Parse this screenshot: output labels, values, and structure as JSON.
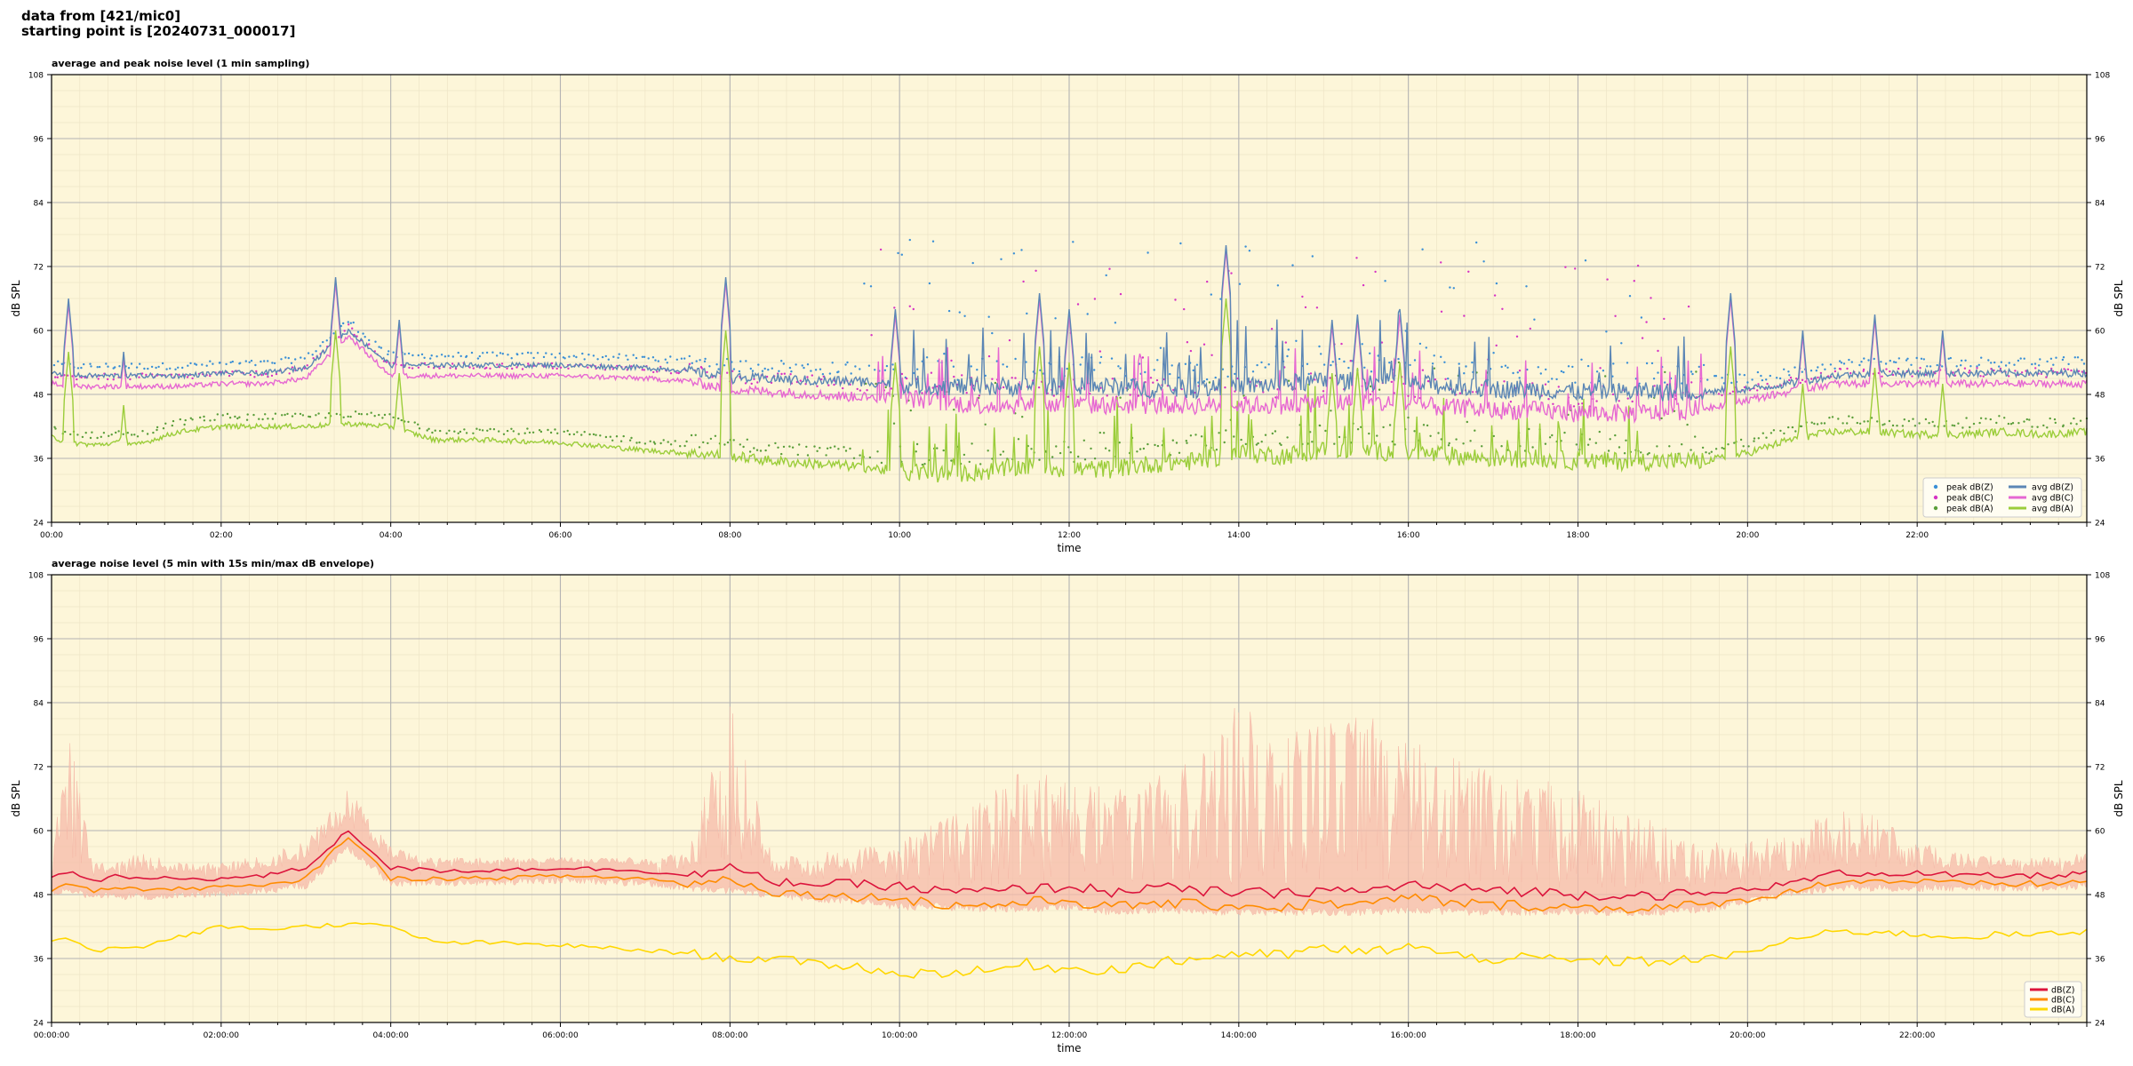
{
  "header": {
    "line1": "data from [421/mic0]",
    "line2": "starting point is [20240731_000017]"
  },
  "colors": {
    "plot_bg": "#fdf6d9",
    "dBZ": "#5b86b5",
    "dBC": "#e667d2",
    "dBA": "#9bcd3a",
    "peakZ": "#3a8fd6",
    "peakC": "#d633c4",
    "peakA": "#5a9e3a",
    "env": "#f5b9a8",
    "avgZ5": "#dc143c",
    "avgC5": "#ff8c00",
    "avgA5": "#ffd700"
  },
  "chart_data": [
    {
      "type": "line",
      "title": "average and peak noise level (1 min sampling)",
      "xlabel": "time",
      "ylabel": "dB SPL",
      "xlim_hours": [
        0,
        24
      ],
      "ylim": [
        24,
        108
      ],
      "yticks": [
        24,
        36,
        48,
        60,
        72,
        84,
        96,
        108
      ],
      "xtick_labels": [
        "00:00",
        "02:00",
        "04:00",
        "06:00",
        "08:00",
        "10:00",
        "12:00",
        "14:00",
        "16:00",
        "18:00",
        "20:00",
        "22:00"
      ],
      "grid": true,
      "legend_position": "lower-right",
      "legend": {
        "peak": [
          "peak dB(Z)",
          "peak dB(C)",
          "peak dB(A)"
        ],
        "avg": [
          "avg dB(Z)",
          "avg dB(C)",
          "avg dB(A)"
        ]
      },
      "hours": [
        0,
        0.2,
        0.5,
        0.8,
        1,
        1.5,
        2,
        2.5,
        3,
        3.5,
        4,
        4.5,
        5,
        6,
        7,
        7.5,
        8,
        8.5,
        9,
        9.5,
        10,
        10.5,
        11,
        11.5,
        12,
        12.5,
        13,
        13.5,
        14,
        14.5,
        15,
        15.5,
        16,
        16.5,
        17,
        17.5,
        18,
        18.5,
        19,
        19.5,
        20,
        20.5,
        21,
        21.5,
        22,
        22.5,
        23,
        23.5,
        24
      ],
      "series": [
        {
          "name": "avg dB(Z)",
          "values": [
            52,
            51.5,
            51.5,
            51.5,
            51.5,
            51.5,
            52,
            52,
            53,
            60,
            53.5,
            53.5,
            53.5,
            53.5,
            53,
            52.5,
            51,
            51,
            50.5,
            50.5,
            50,
            49.5,
            49.5,
            49.5,
            49.5,
            49.5,
            49,
            49,
            49.5,
            50,
            50.5,
            50.5,
            50,
            49.5,
            49,
            49,
            48.5,
            48.5,
            48.5,
            48.5,
            49,
            50,
            51.5,
            52,
            52,
            52,
            52,
            52,
            52
          ]
        },
        {
          "name": "avg dB(C)",
          "values": [
            50,
            49.5,
            49.5,
            49.5,
            49.5,
            49.5,
            50,
            50,
            51,
            59,
            51.5,
            51.5,
            51.5,
            51.5,
            51,
            50.5,
            49,
            48.5,
            48,
            47.5,
            47.5,
            46.5,
            46,
            46,
            46,
            46,
            46,
            46,
            46,
            46,
            46.5,
            46.5,
            46,
            45.5,
            45,
            45,
            44.5,
            44.5,
            44.5,
            45.5,
            47,
            48.5,
            50,
            50,
            50,
            50,
            50,
            50,
            50
          ]
        },
        {
          "name": "avg dB(A)",
          "values": [
            40,
            39,
            38.5,
            39,
            38.5,
            41,
            42,
            42,
            42,
            42.5,
            42,
            39.5,
            39.5,
            39,
            37.5,
            37,
            36.5,
            35.5,
            35,
            34.5,
            33.5,
            33,
            33.5,
            34.5,
            34,
            34,
            35,
            35.5,
            37,
            36.5,
            37.5,
            37.5,
            37,
            36.5,
            36,
            36,
            35.5,
            35.5,
            35.5,
            35.5,
            37,
            39.5,
            41,
            41,
            40.5,
            40.5,
            41,
            40.5,
            41
          ]
        }
      ],
      "peak_events_hours": [
        0.2,
        0.85,
        3.35,
        4.1,
        7.95,
        9.95,
        11.65,
        12.0,
        13.85,
        15.1,
        15.4,
        15.9,
        19.8,
        20.65,
        21.5,
        22.3
      ],
      "peak_event_heights": [
        66,
        56,
        70,
        62,
        70,
        64,
        67,
        64,
        76,
        62,
        63,
        64,
        67,
        60,
        63,
        60
      ]
    },
    {
      "type": "line",
      "title": "average noise level (5 min with 15s min/max dB envelope)",
      "xlabel": "time",
      "ylabel": "dB SPL",
      "xlim_hours": [
        0,
        24
      ],
      "ylim": [
        24,
        108
      ],
      "yticks": [
        24,
        36,
        48,
        60,
        72,
        84,
        96,
        108
      ],
      "xtick_labels": [
        "00:00:00",
        "02:00:00",
        "04:00:00",
        "06:00:00",
        "08:00:00",
        "10:00:00",
        "12:00:00",
        "14:00:00",
        "16:00:00",
        "18:00:00",
        "20:00:00",
        "22:00:00"
      ],
      "grid": true,
      "legend_position": "lower-right",
      "legend": [
        "dB(Z)",
        "dB(C)",
        "dB(A)"
      ],
      "hours": [
        0,
        0.2,
        0.5,
        0.8,
        1,
        1.5,
        2,
        2.5,
        3,
        3.5,
        4,
        4.5,
        5,
        6,
        7,
        7.5,
        8,
        8.5,
        9,
        9.5,
        10,
        10.5,
        11,
        11.5,
        12,
        12.5,
        13,
        13.5,
        14,
        14.5,
        15,
        15.5,
        16,
        16.5,
        17,
        17.5,
        18,
        18.5,
        19,
        19.5,
        20,
        20.5,
        21,
        21.5,
        22,
        22.5,
        23,
        23.5,
        24
      ],
      "series": [
        {
          "name": "dB(Z)",
          "values": [
            51,
            52.5,
            50.5,
            51.5,
            51,
            51,
            51,
            51.5,
            53,
            60,
            53,
            52.5,
            52.5,
            53,
            52.5,
            51.5,
            53,
            50.5,
            50,
            50,
            49.5,
            48.5,
            48.5,
            49,
            49.5,
            48.5,
            49.5,
            48.5,
            48.5,
            48,
            49,
            48.5,
            50,
            49,
            49,
            48.5,
            48,
            48,
            48,
            48,
            49,
            50,
            52,
            52,
            52,
            51.5,
            51.5,
            51.5,
            52
          ]
        },
        {
          "name": "dB(C)",
          "values": [
            49,
            50.5,
            48.5,
            49.5,
            49,
            49,
            49.5,
            49.5,
            51,
            59,
            51,
            51,
            51,
            51.5,
            51,
            50,
            51,
            48.5,
            48,
            47.5,
            47.5,
            46,
            46,
            46.5,
            47,
            45.5,
            46.5,
            46,
            46,
            45.5,
            46.5,
            46,
            47.5,
            46.5,
            46,
            46,
            45.5,
            45.5,
            45.5,
            46,
            47,
            48.5,
            50.5,
            50.5,
            50.5,
            50,
            50,
            50,
            50.5
          ]
        },
        {
          "name": "dB(A)",
          "values": [
            39.5,
            40,
            37.5,
            38,
            38,
            40,
            42,
            41.5,
            42,
            42.5,
            42,
            39,
            39,
            38.5,
            37.5,
            37,
            36,
            36,
            35,
            34.5,
            33,
            33.5,
            33.5,
            35,
            34,
            34,
            35,
            36,
            37,
            36.5,
            38,
            37,
            38.5,
            36.5,
            36,
            36,
            35.5,
            35.5,
            35.5,
            36,
            37,
            39.5,
            41,
            41,
            40.5,
            40,
            40.5,
            40.5,
            41
          ]
        }
      ],
      "envelope_max": [
        54,
        80,
        54,
        54,
        56,
        54,
        54,
        56,
        58,
        68,
        57,
        55,
        55,
        55,
        55,
        56,
        84,
        55,
        56,
        57,
        58,
        62,
        66,
        72,
        70,
        68,
        72,
        74,
        84,
        78,
        80,
        82,
        78,
        74,
        72,
        70,
        68,
        64,
        62,
        58,
        58,
        60,
        64,
        63,
        58,
        56,
        55,
        55,
        56
      ],
      "envelope_min": [
        48,
        48,
        47,
        47,
        47,
        47,
        47.5,
        48,
        49,
        56,
        49.5,
        49.5,
        49.5,
        50,
        49.5,
        48.5,
        48,
        47,
        46.5,
        46,
        45,
        45,
        44.5,
        44.5,
        45,
        44,
        44.5,
        44,
        44,
        44,
        44,
        44,
        44.5,
        44,
        44,
        44,
        44,
        44,
        44,
        44.5,
        46,
        47.5,
        48.5,
        48.5,
        48.5,
        48.5,
        48.5,
        48.5,
        49
      ]
    }
  ]
}
